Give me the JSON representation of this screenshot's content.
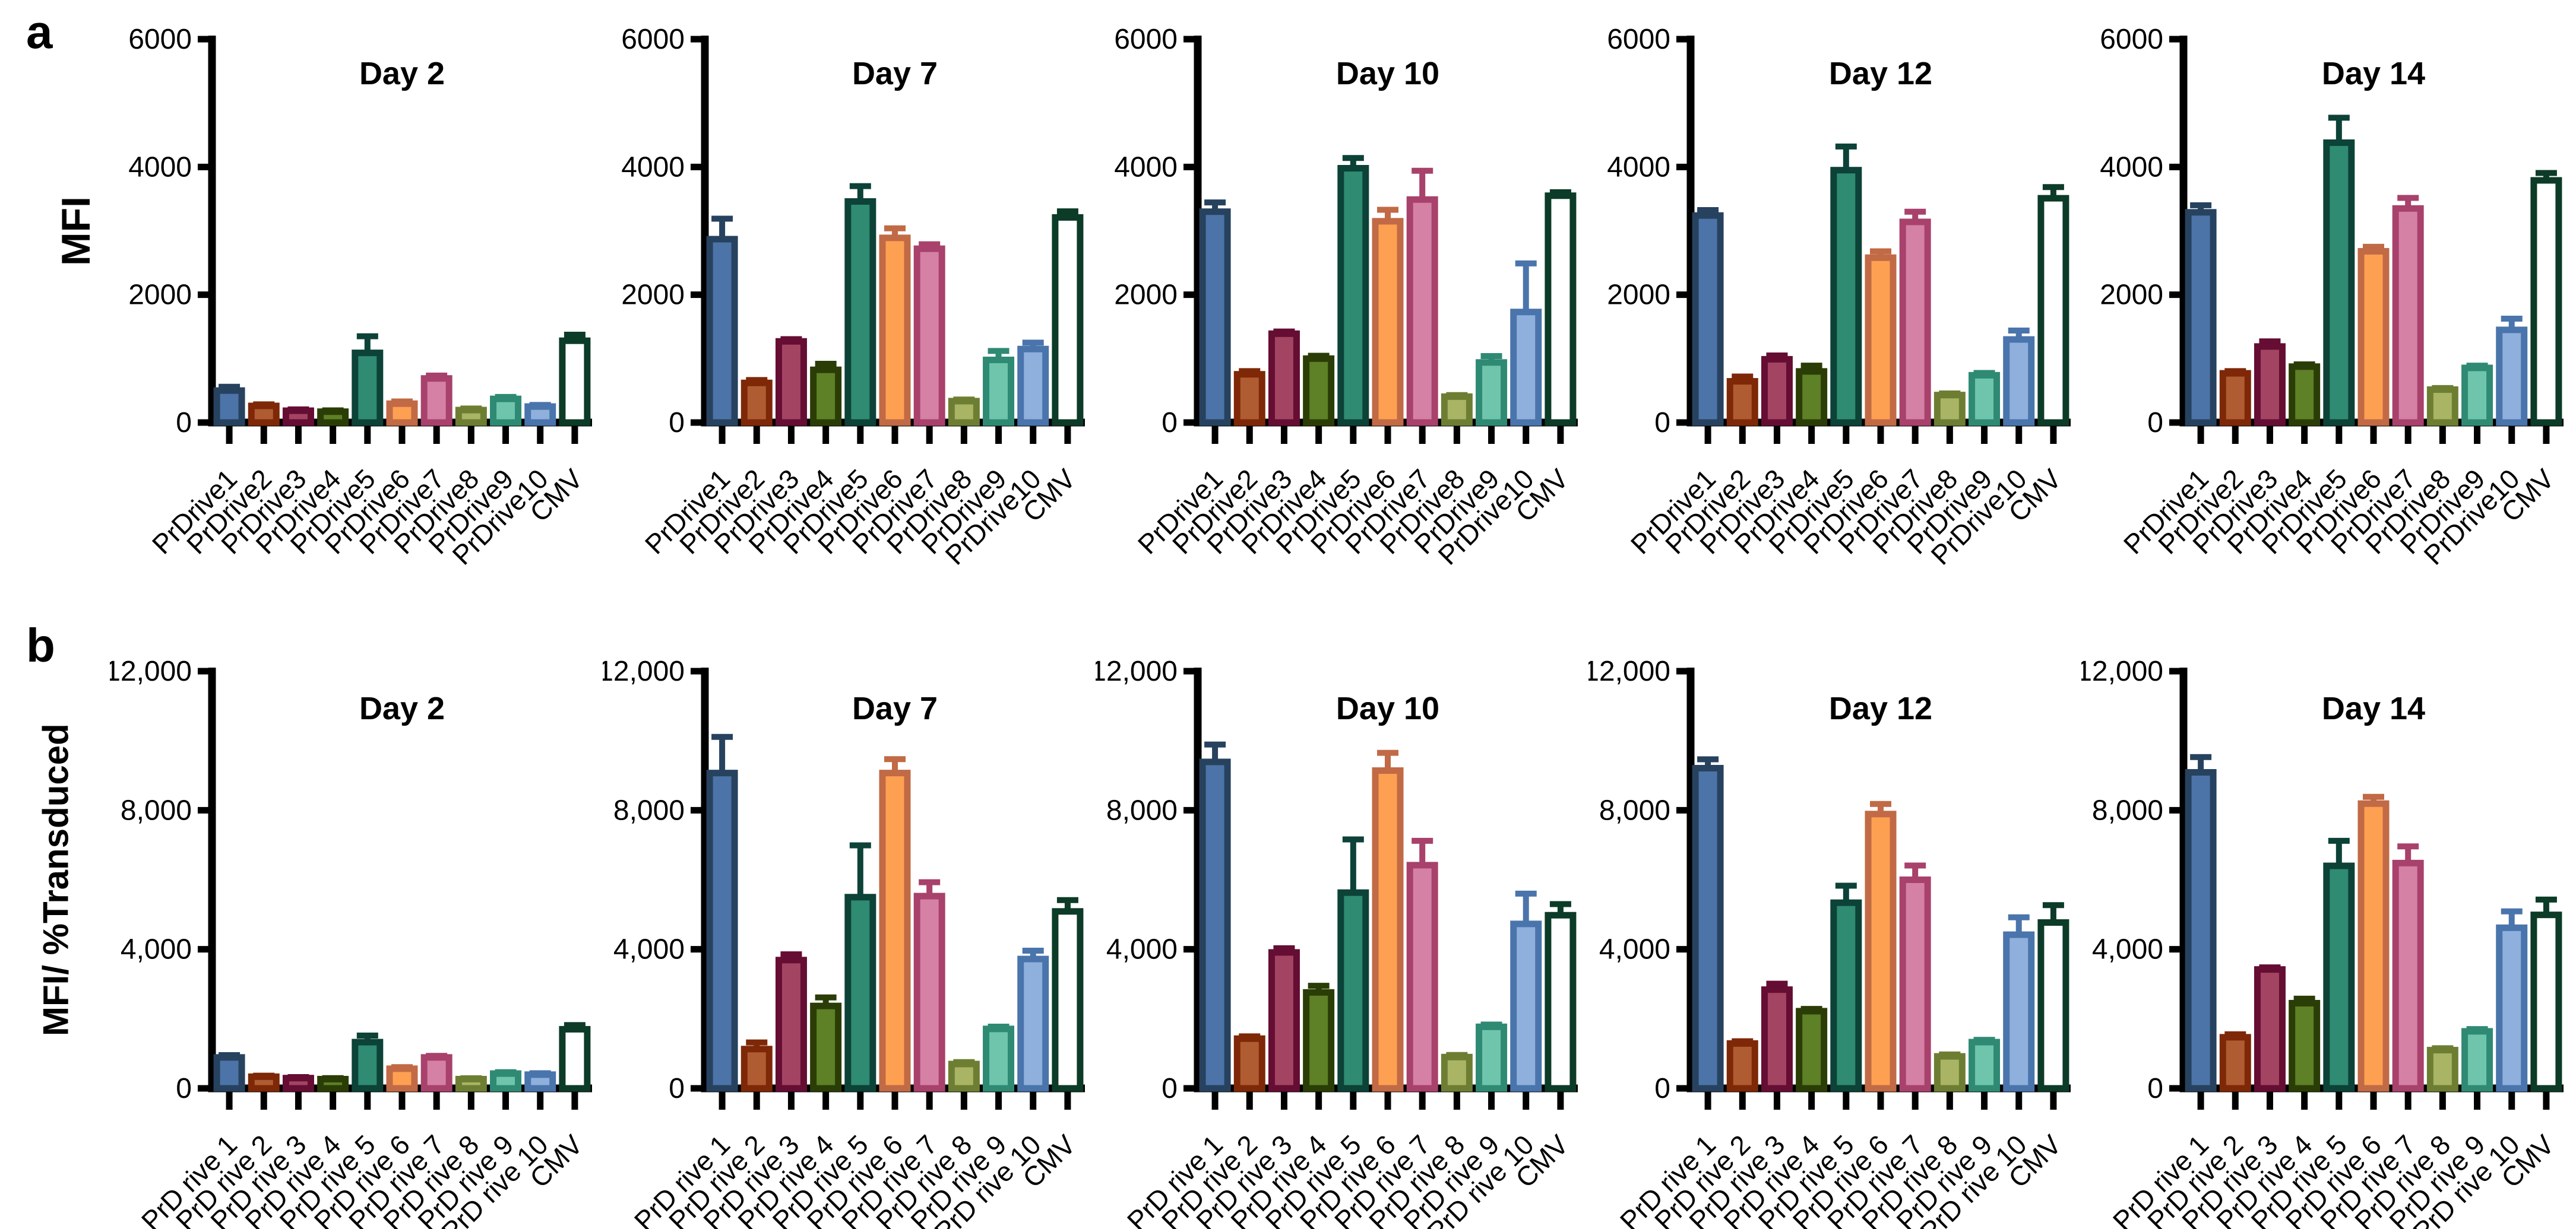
{
  "figure": {
    "panel_letters": [
      "a",
      "b"
    ],
    "background": "#ffffff",
    "axis_color": "#000000"
  },
  "bar_styles": [
    {
      "name": "PrDrive1",
      "fill": "#4C74A8",
      "stroke": "#27425F"
    },
    {
      "name": "PrDrive2",
      "fill": "#B05C32",
      "stroke": "#7E2807"
    },
    {
      "name": "PrDrive3",
      "fill": "#A34463",
      "stroke": "#650D33"
    },
    {
      "name": "PrDrive4",
      "fill": "#5E8026",
      "stroke": "#2B3D06"
    },
    {
      "name": "PrDrive5",
      "fill": "#2F8B72",
      "stroke": "#0C4237"
    },
    {
      "name": "PrDrive6",
      "fill": "#FDA052",
      "stroke": "#C16A45"
    },
    {
      "name": "PrDrive7",
      "fill": "#D581A5",
      "stroke": "#A8416B"
    },
    {
      "name": "PrDrive8",
      "fill": "#A9B464",
      "stroke": "#6D7E33"
    },
    {
      "name": "PrDrive9",
      "fill": "#6FC5AC",
      "stroke": "#2F8A74"
    },
    {
      "name": "PrDrive10",
      "fill": "#8FB0DC",
      "stroke": "#4A74AC"
    },
    {
      "name": "CMV",
      "fill": "#FFFFFF",
      "stroke": "#0C3B28"
    }
  ],
  "chart_data": [
    {
      "type": "bar",
      "row": "a",
      "ylabel": "MFI",
      "ylim": [
        0,
        6000
      ],
      "grid": false,
      "legend": "none",
      "yticks": [
        {
          "value": 0,
          "label": "0"
        },
        {
          "value": 2000,
          "label": "2000"
        },
        {
          "value": 4000,
          "label": "4000"
        },
        {
          "value": 6000,
          "label": "6000"
        }
      ],
      "categories": [
        "PrDrive1",
        "PrDrive2",
        "PrDrive3",
        "PrDrive4",
        "PrDrive5",
        "PrDrive6",
        "PrDrive7",
        "PrDrive8",
        "PrDrive9",
        "PrDrive10",
        "CMV"
      ],
      "panels": [
        {
          "title": "Day 2",
          "values": [
            500,
            260,
            185,
            170,
            1090,
            295,
            690,
            195,
            370,
            250,
            1280
          ],
          "errors": [
            60,
            25,
            20,
            20,
            260,
            35,
            45,
            25,
            30,
            25,
            95
          ]
        },
        {
          "title": "Day 7",
          "values": [
            2870,
            620,
            1270,
            825,
            3460,
            2890,
            2720,
            335,
            980,
            1150,
            3210
          ],
          "errors": [
            320,
            45,
            35,
            95,
            240,
            150,
            70,
            25,
            140,
            100,
            95
          ]
        },
        {
          "title": "Day 10",
          "values": [
            3300,
            755,
            1390,
            1000,
            3980,
            3150,
            3490,
            405,
            940,
            1730,
            3550
          ],
          "errors": [
            145,
            50,
            35,
            45,
            160,
            180,
            450,
            25,
            100,
            760,
            55
          ]
        },
        {
          "title": "Day 12",
          "values": [
            3240,
            645,
            990,
            800,
            3950,
            2580,
            3140,
            430,
            740,
            1300,
            3510
          ],
          "errors": [
            85,
            75,
            60,
            90,
            370,
            100,
            160,
            25,
            35,
            140,
            175
          ]
        },
        {
          "title": "Day 14",
          "values": [
            3290,
            770,
            1190,
            875,
            4380,
            2680,
            3350,
            515,
            855,
            1450,
            3790
          ],
          "errors": [
            110,
            35,
            80,
            35,
            390,
            70,
            165,
            25,
            35,
            175,
            115
          ]
        }
      ]
    },
    {
      "type": "bar",
      "row": "b",
      "ylabel": "MFI/ %Transduced",
      "ylim": [
        0,
        12000
      ],
      "grid": false,
      "legend": "none",
      "yticks": [
        {
          "value": 0,
          "label": "0"
        },
        {
          "value": 4000,
          "label": "4,000"
        },
        {
          "value": 8000,
          "label": "8,000"
        },
        {
          "value": 12000,
          "label": "12,000"
        }
      ],
      "categories": [
        "PrD rive 1",
        "PrD rive 2",
        "PrD rive 3",
        "PrD rive 4",
        "PrD rive 5",
        "PrD rive 6",
        "PrD rive 7",
        "PrD rive 8",
        "PrD rive 9",
        "PrD rive 10",
        "CMV"
      ],
      "panels": [
        {
          "title": "Day 2",
          "values": [
            890,
            335,
            295,
            265,
            1330,
            565,
            890,
            265,
            425,
            395,
            1700
          ],
          "errors": [
            65,
            30,
            30,
            30,
            190,
            45,
            45,
            25,
            40,
            40,
            120
          ]
        },
        {
          "title": "Day 7",
          "values": [
            9070,
            1130,
            3690,
            2370,
            5500,
            9070,
            5530,
            700,
            1710,
            3720,
            5090
          ],
          "errors": [
            1040,
            190,
            165,
            245,
            1490,
            400,
            400,
            55,
            65,
            240,
            325
          ]
        },
        {
          "title": "Day 10",
          "values": [
            9390,
            1430,
            3910,
            2760,
            5630,
            9140,
            6420,
            900,
            1770,
            4730,
            4980
          ],
          "errors": [
            500,
            65,
            120,
            190,
            1530,
            510,
            700,
            60,
            65,
            870,
            320
          ]
        },
        {
          "title": "Day 12",
          "values": [
            9210,
            1290,
            2840,
            2220,
            5340,
            7890,
            6000,
            920,
            1330,
            4420,
            4770
          ],
          "errors": [
            255,
            65,
            170,
            65,
            490,
            290,
            410,
            55,
            65,
            500,
            500
          ]
        },
        {
          "title": "Day 14",
          "values": [
            9090,
            1470,
            3420,
            2450,
            6400,
            8190,
            6480,
            1100,
            1640,
            4620,
            4990
          ],
          "errors": [
            440,
            85,
            60,
            130,
            720,
            195,
            480,
            55,
            65,
            470,
            440
          ]
        }
      ]
    }
  ]
}
